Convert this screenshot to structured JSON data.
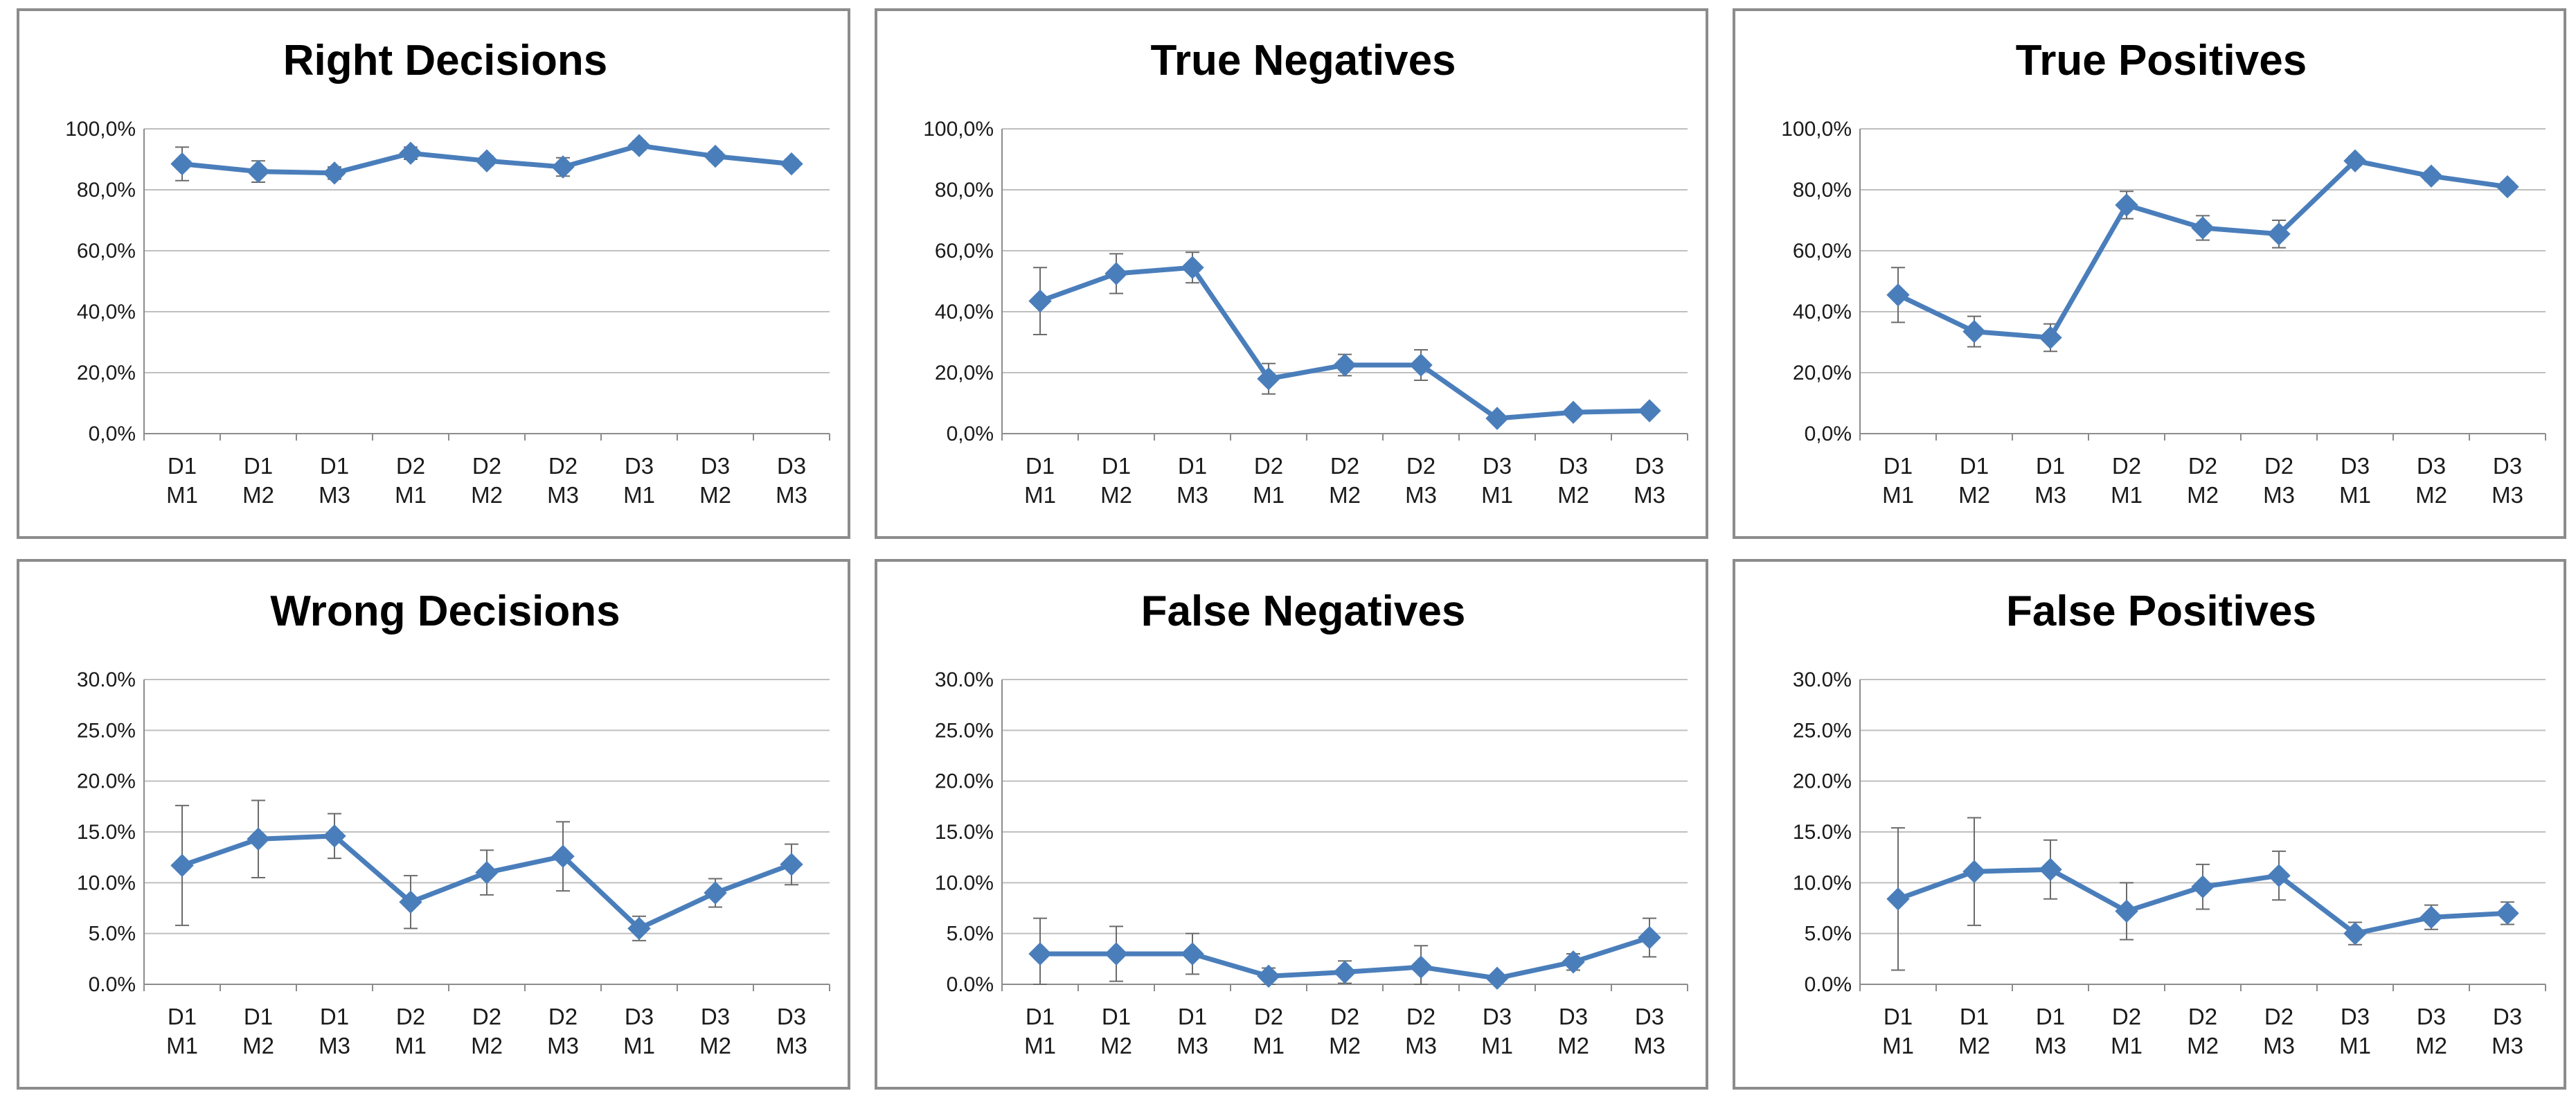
{
  "categories": [
    [
      "D1",
      "M1"
    ],
    [
      "D1",
      "M2"
    ],
    [
      "D1",
      "M3"
    ],
    [
      "D2",
      "M1"
    ],
    [
      "D2",
      "M2"
    ],
    [
      "D2",
      "M3"
    ],
    [
      "D3",
      "M1"
    ],
    [
      "D3",
      "M2"
    ],
    [
      "D3",
      "M3"
    ]
  ],
  "colors": {
    "series": "#4a7ebb",
    "grid": "#bfbfbf",
    "axis": "#8c8c8c",
    "error": "#6b6b6b"
  },
  "chart_data": [
    {
      "type": "line",
      "title": "Right Decisions",
      "yticks": [
        "100,0%",
        "80,0%",
        "60,0%",
        "40,0%",
        "20,0%",
        "0,0%"
      ],
      "ylim": [
        0,
        100
      ],
      "values": [
        88.5,
        86,
        85.5,
        92,
        89.5,
        87.5,
        94.5,
        91,
        88.5
      ],
      "errors": [
        5.5,
        3.5,
        2,
        2,
        1.5,
        3,
        1.5,
        1.5,
        1.5
      ]
    },
    {
      "type": "line",
      "title": "True Negatives",
      "yticks": [
        "100,0%",
        "80,0%",
        "60,0%",
        "40,0%",
        "20,0%",
        "0,0%"
      ],
      "ylim": [
        0,
        100
      ],
      "values": [
        43.5,
        52.5,
        54.5,
        18,
        22.5,
        22.5,
        5,
        7,
        7.5
      ],
      "errors": [
        11,
        6.5,
        5,
        5,
        3.5,
        5,
        1,
        1,
        1
      ]
    },
    {
      "type": "line",
      "title": "True Positives",
      "yticks": [
        "100,0%",
        "80,0%",
        "60,0%",
        "40,0%",
        "20,0%",
        "0,0%"
      ],
      "ylim": [
        0,
        100
      ],
      "values": [
        45.5,
        33.5,
        31.5,
        75,
        67.5,
        65.5,
        89.5,
        84.5,
        81
      ],
      "errors": [
        9,
        5,
        4.5,
        4.5,
        4,
        4.5,
        1.5,
        1.5,
        1.5
      ]
    },
    {
      "type": "line",
      "title": "Wrong Decisions",
      "yticks": [
        "30.0%",
        "25.0%",
        "20.0%",
        "15.0%",
        "10.0%",
        "5.0%",
        "0.0%"
      ],
      "ylim": [
        0,
        30
      ],
      "values": [
        11.7,
        14.3,
        14.6,
        8.1,
        11,
        12.6,
        5.5,
        9,
        11.8
      ],
      "errors": [
        5.9,
        3.8,
        2.2,
        2.6,
        2.2,
        3.4,
        1.2,
        1.4,
        2
      ]
    },
    {
      "type": "line",
      "title": "False Negatives",
      "yticks": [
        "30.0%",
        "25.0%",
        "20.0%",
        "15.0%",
        "10.0%",
        "5.0%",
        "0.0%"
      ],
      "ylim": [
        0,
        30
      ],
      "values": [
        3,
        3,
        3,
        0.8,
        1.2,
        1.7,
        0.6,
        2.2,
        4.6
      ],
      "errors": [
        3.5,
        2.7,
        2,
        0.8,
        1.1,
        2.1,
        0.4,
        0.8,
        1.9
      ]
    },
    {
      "type": "line",
      "title": "False Positives",
      "yticks": [
        "30.0%",
        "25.0%",
        "20.0%",
        "15.0%",
        "10.0%",
        "5.0%",
        "0.0%"
      ],
      "ylim": [
        0,
        30
      ],
      "values": [
        8.4,
        11.1,
        11.3,
        7.2,
        9.6,
        10.7,
        5,
        6.6,
        7
      ],
      "errors": [
        7,
        5.3,
        2.9,
        2.8,
        2.2,
        2.4,
        1.1,
        1.2,
        1.1
      ]
    }
  ]
}
